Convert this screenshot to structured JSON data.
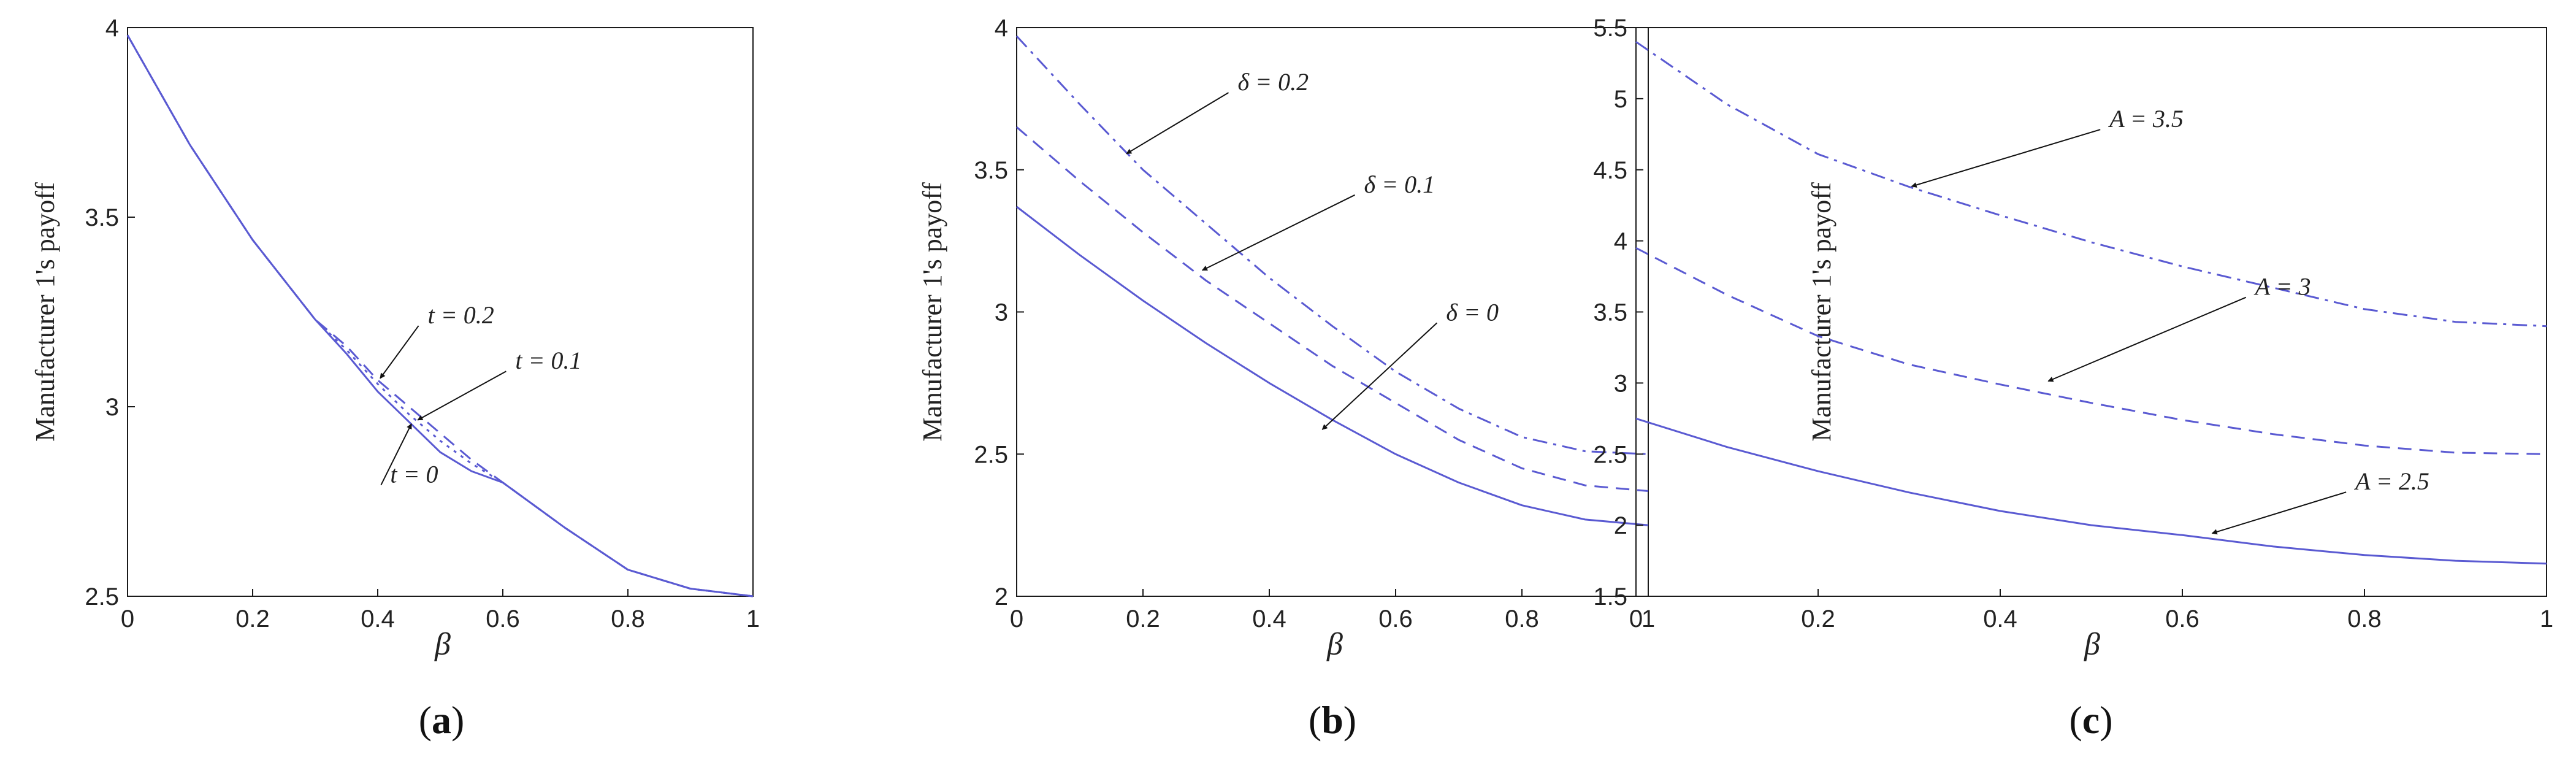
{
  "chart_data": [
    {
      "type": "line",
      "caption": "(a)",
      "caption_letter": "a",
      "xlabel": "β",
      "ylabel": "Manufacturer 1's payoff",
      "xlim": [
        0,
        1
      ],
      "ylim": [
        2.5,
        4
      ],
      "xticks": [
        0,
        0.2,
        0.4,
        0.6,
        0.8,
        1
      ],
      "xtick_labels": [
        "0",
        "0.2",
        "0.4",
        "0.6",
        "0.8",
        "1"
      ],
      "yticks": [
        2.5,
        3,
        3.5,
        4
      ],
      "ytick_labels": [
        "2.5",
        "3",
        "3.5",
        "4"
      ],
      "grid": false,
      "color": "#5a5ad2",
      "series": [
        {
          "name": "t = 0",
          "style": "solid",
          "x": [
            0,
            0.1,
            0.2,
            0.3,
            0.35,
            0.4,
            0.45,
            0.5,
            0.55,
            0.6,
            0.7,
            0.8,
            0.9,
            1.0
          ],
          "y": [
            3.98,
            3.69,
            3.44,
            3.23,
            3.14,
            3.04,
            2.96,
            2.88,
            2.83,
            2.8,
            2.68,
            2.57,
            2.52,
            2.5
          ]
        },
        {
          "name": "t = 0.1",
          "style": "dotted",
          "x": [
            0,
            0.1,
            0.2,
            0.3,
            0.35,
            0.4,
            0.45,
            0.5,
            0.55,
            0.6,
            0.7,
            0.8,
            0.9,
            1.0
          ],
          "y": [
            3.98,
            3.69,
            3.44,
            3.23,
            3.15,
            3.06,
            2.98,
            2.91,
            2.85,
            2.8,
            2.68,
            2.57,
            2.52,
            2.5
          ]
        },
        {
          "name": "t = 0.2",
          "style": "dashed",
          "x": [
            0,
            0.1,
            0.2,
            0.3,
            0.35,
            0.4,
            0.45,
            0.5,
            0.55,
            0.6,
            0.7,
            0.8,
            0.9,
            1.0
          ],
          "y": [
            3.98,
            3.69,
            3.44,
            3.23,
            3.16,
            3.07,
            3.0,
            2.93,
            2.86,
            2.8,
            2.68,
            2.57,
            2.52,
            2.5
          ]
        }
      ],
      "annotations": [
        {
          "text": "t = 0.2",
          "point": [
            0.4,
            3.07
          ],
          "label": [
            0.48,
            3.22
          ]
        },
        {
          "text": "t = 0.1",
          "point": [
            0.46,
            2.96
          ],
          "label": [
            0.62,
            3.1
          ]
        },
        {
          "text": "t = 0",
          "point": [
            0.45,
            2.95
          ],
          "label": [
            0.42,
            2.8
          ]
        }
      ]
    },
    {
      "type": "line",
      "caption": "(b)",
      "caption_letter": "b",
      "xlabel": "β",
      "ylabel": "Manufacturer 1's payoff",
      "xlim": [
        0,
        1
      ],
      "ylim": [
        2,
        4
      ],
      "xticks": [
        0,
        0.2,
        0.4,
        0.6,
        0.8,
        1
      ],
      "xtick_labels": [
        "0",
        "0.2",
        "0.4",
        "0.6",
        "0.8",
        "1"
      ],
      "yticks": [
        2,
        2.5,
        3,
        3.5,
        4
      ],
      "ytick_labels": [
        "2",
        "2.5",
        "3",
        "3.5",
        "4"
      ],
      "grid": false,
      "color": "#5a5ad2",
      "series": [
        {
          "name": "δ = 0",
          "style": "solid",
          "x": [
            0,
            0.1,
            0.2,
            0.3,
            0.4,
            0.5,
            0.6,
            0.7,
            0.8,
            0.9,
            1.0
          ],
          "y": [
            3.37,
            3.2,
            3.04,
            2.89,
            2.75,
            2.62,
            2.5,
            2.4,
            2.32,
            2.27,
            2.25
          ]
        },
        {
          "name": "δ = 0.1",
          "style": "dashed",
          "x": [
            0,
            0.1,
            0.2,
            0.3,
            0.4,
            0.5,
            0.6,
            0.7,
            0.8,
            0.9,
            1.0
          ],
          "y": [
            3.65,
            3.46,
            3.28,
            3.11,
            2.96,
            2.81,
            2.68,
            2.55,
            2.45,
            2.39,
            2.37
          ]
        },
        {
          "name": "δ = 0.2",
          "style": "dashdot",
          "x": [
            0,
            0.1,
            0.2,
            0.3,
            0.4,
            0.5,
            0.6,
            0.7,
            0.8,
            0.9,
            1.0
          ],
          "y": [
            3.97,
            3.73,
            3.5,
            3.31,
            3.12,
            2.95,
            2.79,
            2.66,
            2.56,
            2.51,
            2.5
          ]
        }
      ],
      "annotations": [
        {
          "text": "δ = 0.2",
          "point": [
            0.17,
            3.55
          ],
          "label": [
            0.35,
            3.78
          ]
        },
        {
          "text": "δ = 0.1",
          "point": [
            0.29,
            3.14
          ],
          "label": [
            0.55,
            3.42
          ]
        },
        {
          "text": "δ = 0",
          "point": [
            0.48,
            2.58
          ],
          "label": [
            0.68,
            2.97
          ]
        }
      ]
    },
    {
      "type": "line",
      "caption": "(c)",
      "caption_letter": "c",
      "xlabel": "β",
      "ylabel": "Manufacturer 1's payoff",
      "xlim": [
        0,
        1
      ],
      "ylim": [
        1.5,
        5.5
      ],
      "xticks": [
        0,
        0.2,
        0.4,
        0.6,
        0.8,
        1
      ],
      "xtick_labels": [
        "0",
        "0.2",
        "0.4",
        "0.6",
        "0.8",
        "1"
      ],
      "yticks": [
        1.5,
        2,
        2.5,
        3,
        3.5,
        4,
        4.5,
        5,
        5.5
      ],
      "ytick_labels": [
        "1.5",
        "2",
        "2.5",
        "3",
        "3.5",
        "4",
        "4.5",
        "5",
        "5.5"
      ],
      "grid": false,
      "color": "#5a5ad2",
      "series": [
        {
          "name": "A = 2.5",
          "style": "solid",
          "x": [
            0,
            0.1,
            0.2,
            0.3,
            0.4,
            0.5,
            0.6,
            0.7,
            0.8,
            0.9,
            1.0
          ],
          "y": [
            2.75,
            2.55,
            2.38,
            2.23,
            2.1,
            2.0,
            1.93,
            1.85,
            1.79,
            1.75,
            1.73
          ]
        },
        {
          "name": "A = 3",
          "style": "dashed",
          "x": [
            0,
            0.1,
            0.2,
            0.3,
            0.4,
            0.5,
            0.6,
            0.7,
            0.8,
            0.9,
            1.0
          ],
          "y": [
            3.95,
            3.62,
            3.33,
            3.13,
            2.99,
            2.86,
            2.74,
            2.64,
            2.56,
            2.51,
            2.5
          ]
        },
        {
          "name": "A = 3.5",
          "style": "dashdot",
          "x": [
            0,
            0.1,
            0.2,
            0.3,
            0.4,
            0.5,
            0.6,
            0.7,
            0.8,
            0.9,
            1.0
          ],
          "y": [
            5.4,
            4.96,
            4.61,
            4.38,
            4.18,
            3.99,
            3.82,
            3.67,
            3.52,
            3.43,
            3.4
          ]
        }
      ],
      "annotations": [
        {
          "text": "A = 3.5",
          "point": [
            0.3,
            4.37
          ],
          "label": [
            0.52,
            4.8
          ]
        },
        {
          "text": "A = 3",
          "point": [
            0.45,
            3.0
          ],
          "label": [
            0.68,
            3.62
          ]
        },
        {
          "text": "A = 2.5",
          "point": [
            0.63,
            1.93
          ],
          "label": [
            0.79,
            2.25
          ]
        }
      ]
    }
  ]
}
